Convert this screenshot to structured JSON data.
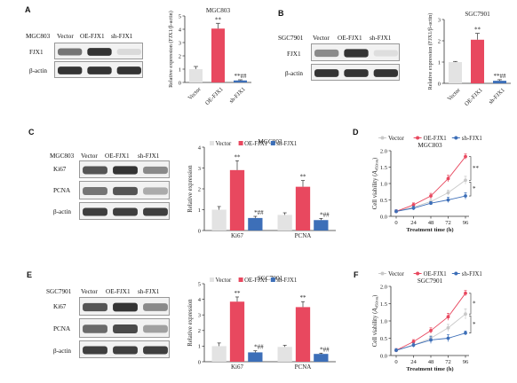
{
  "panels": [
    {
      "letter": "A",
      "blot": {
        "cell_line": "MGC803",
        "lanes": [
          "Vector",
          "OE-FJX1",
          "sh-FJX1"
        ],
        "rows": [
          {
            "label": "FJX1",
            "intensity": [
              0.55,
              0.85,
              0.08
            ]
          },
          {
            "label": "β-actin",
            "intensity": [
              0.85,
              0.85,
              0.85
            ]
          }
        ]
      }
    },
    {
      "letter": "B",
      "blot": {
        "cell_line": "SGC7901",
        "lanes": [
          "Vector",
          "OE-FJX1",
          "sh-FJX1"
        ],
        "rows": [
          {
            "label": "FJX1",
            "intensity": [
              0.45,
              0.85,
              0.06
            ]
          },
          {
            "label": "β-actin",
            "intensity": [
              0.85,
              0.85,
              0.85
            ]
          }
        ]
      }
    },
    {
      "letter": "C",
      "blot": {
        "cell_line": "MGC803",
        "lanes": [
          "Vector",
          "OE-FJX1",
          "sh-FJX1"
        ],
        "rows": [
          {
            "label": "Ki67",
            "intensity": [
              0.7,
              0.85,
              0.45
            ]
          },
          {
            "label": "PCNA",
            "intensity": [
              0.55,
              0.7,
              0.3
            ]
          },
          {
            "label": "β-actin",
            "intensity": [
              0.8,
              0.8,
              0.8
            ]
          }
        ]
      }
    },
    {
      "letter": "D"
    },
    {
      "letter": "E",
      "blot": {
        "cell_line": "SGC7901",
        "lanes": [
          "Vector",
          "OE-FJX1",
          "sh-FJX1"
        ],
        "rows": [
          {
            "label": "Ki67",
            "intensity": [
              0.7,
              0.85,
              0.45
            ]
          },
          {
            "label": "PCNA",
            "intensity": [
              0.6,
              0.75,
              0.35
            ]
          },
          {
            "label": "β-actin",
            "intensity": [
              0.8,
              0.8,
              0.8
            ]
          }
        ]
      }
    },
    {
      "letter": "F"
    }
  ],
  "chart_data": [
    {
      "id": "A-bar",
      "type": "bar",
      "title": "MGC803",
      "ylabel": "Relative expression (FJX1/β-actin)",
      "ylim": [
        0,
        5
      ],
      "yticks": [
        0,
        1,
        2,
        3,
        4,
        5
      ],
      "categories": [
        "Vector",
        "OE-FJX1",
        "sh-FJX1"
      ],
      "values": [
        1.0,
        4.05,
        0.15
      ],
      "errors": [
        0.2,
        0.4,
        0.05
      ],
      "colors": [
        "#e3e3e3",
        "#e8485f",
        "#3d6fb8"
      ],
      "annotations": [
        "",
        "**",
        "**##"
      ]
    },
    {
      "id": "B-bar",
      "type": "bar",
      "title": "SGC7901",
      "ylabel": "Relative expression (FJX1/β-actin)",
      "ylim": [
        0,
        3
      ],
      "yticks": [
        0,
        1,
        2,
        3
      ],
      "categories": [
        "Vector",
        "OE-FJX1",
        "sh-FJX1"
      ],
      "values": [
        1.0,
        2.05,
        0.12
      ],
      "errors": [
        0.03,
        0.3,
        0.05
      ],
      "colors": [
        "#e3e3e3",
        "#e8485f",
        "#3d6fb8"
      ],
      "annotations": [
        "",
        "**",
        "**##"
      ]
    },
    {
      "id": "C-bar",
      "type": "bar",
      "title": "MGC803",
      "ylabel": "Relative expression",
      "ylim": [
        0,
        4
      ],
      "yticks": [
        0,
        1,
        2,
        3,
        4
      ],
      "categories": [
        "Ki67",
        "PCNA"
      ],
      "series": [
        {
          "name": "Vector",
          "color": "#e3e3e3",
          "values": [
            1.0,
            0.75
          ],
          "errors": [
            0.15,
            0.1
          ],
          "annotations": [
            "",
            ""
          ]
        },
        {
          "name": "OE-FJX1",
          "color": "#e8485f",
          "values": [
            2.9,
            2.1
          ],
          "errors": [
            0.45,
            0.3
          ],
          "annotations": [
            "**",
            "**"
          ]
        },
        {
          "name": "sh-FJX1",
          "color": "#3d6fb8",
          "values": [
            0.6,
            0.5
          ],
          "errors": [
            0.08,
            0.08
          ],
          "annotations": [
            "*##",
            "*##"
          ]
        }
      ]
    },
    {
      "id": "D-line",
      "type": "line",
      "title": "MGC803",
      "xlabel": "Treatment time (h)",
      "ylabel": "Cell viability (A450nm)",
      "ylabel_main": "Cell viability (",
      "ylabel_italic": "A",
      "ylabel_sub": "450nm",
      "ylabel_end": ")",
      "x": [
        0,
        24,
        48,
        72,
        96
      ],
      "xlim": [
        0,
        96
      ],
      "ylim": [
        0,
        2
      ],
      "yticks": [
        0.0,
        0.5,
        1.0,
        1.5,
        2.0
      ],
      "ytick_labels": [
        "0.0",
        "0.5",
        "1.0",
        "1.5",
        "2.0"
      ],
      "series": [
        {
          "name": "Vector",
          "color": "#c9c9c9",
          "values": [
            0.15,
            0.28,
            0.45,
            0.72,
            1.1
          ],
          "errors": [
            0.05,
            0.06,
            0.08,
            0.08,
            0.12
          ]
        },
        {
          "name": "OE-FJX1",
          "color": "#e8485f",
          "values": [
            0.15,
            0.35,
            0.62,
            1.15,
            1.82
          ],
          "errors": [
            0.05,
            0.06,
            0.08,
            0.1,
            0.08
          ]
        },
        {
          "name": "sh-FJX1",
          "color": "#3d6fb8",
          "values": [
            0.15,
            0.25,
            0.4,
            0.5,
            0.62
          ],
          "errors": [
            0.05,
            0.06,
            0.05,
            0.08,
            0.1
          ]
        }
      ],
      "sig": [
        "**",
        "*"
      ]
    },
    {
      "id": "E-bar",
      "type": "bar",
      "title": "SGC7901",
      "ylabel": "Relative expression",
      "ylim": [
        0,
        5
      ],
      "yticks": [
        0,
        1,
        2,
        3,
        4,
        5
      ],
      "categories": [
        "Ki67",
        "PCNA"
      ],
      "series": [
        {
          "name": "Vector",
          "color": "#e3e3e3",
          "values": [
            1.0,
            0.95
          ],
          "errors": [
            0.2,
            0.1
          ],
          "annotations": [
            "",
            ""
          ]
        },
        {
          "name": "OE-FJX1",
          "color": "#e8485f",
          "values": [
            3.85,
            3.5
          ],
          "errors": [
            0.3,
            0.35
          ],
          "annotations": [
            "**",
            "**"
          ]
        },
        {
          "name": "sh-FJX1",
          "color": "#3d6fb8",
          "values": [
            0.6,
            0.5
          ],
          "errors": [
            0.1,
            0.05
          ],
          "annotations": [
            "*##",
            "*##"
          ]
        }
      ]
    },
    {
      "id": "F-line",
      "type": "line",
      "title": "SGC7901",
      "xlabel": "Treatment time (h)",
      "ylabel": "Cell viability (A450nm)",
      "ylabel_main": "Cell viability (",
      "ylabel_italic": "A",
      "ylabel_sub": "450nm",
      "ylabel_end": ")",
      "x": [
        0,
        24,
        48,
        72,
        96
      ],
      "xlim": [
        0,
        96
      ],
      "ylim": [
        0,
        2
      ],
      "yticks": [
        0.0,
        0.5,
        1.0,
        1.5,
        2.0
      ],
      "ytick_labels": [
        "0.0",
        "0.5",
        "1.0",
        "1.5",
        "2.0"
      ],
      "series": [
        {
          "name": "Vector",
          "color": "#c9c9c9",
          "values": [
            0.15,
            0.3,
            0.5,
            0.8,
            1.2
          ],
          "errors": [
            0.05,
            0.06,
            0.08,
            0.1,
            0.15
          ]
        },
        {
          "name": "OE-FJX1",
          "color": "#e8485f",
          "values": [
            0.15,
            0.4,
            0.72,
            1.12,
            1.8
          ],
          "errors": [
            0.05,
            0.06,
            0.08,
            0.1,
            0.08
          ]
        },
        {
          "name": "sh-FJX1",
          "color": "#3d6fb8",
          "values": [
            0.15,
            0.3,
            0.45,
            0.5,
            0.65
          ],
          "errors": [
            0.05,
            0.06,
            0.1,
            0.1,
            0.06
          ]
        }
      ],
      "sig": [
        "*",
        "*"
      ]
    }
  ]
}
